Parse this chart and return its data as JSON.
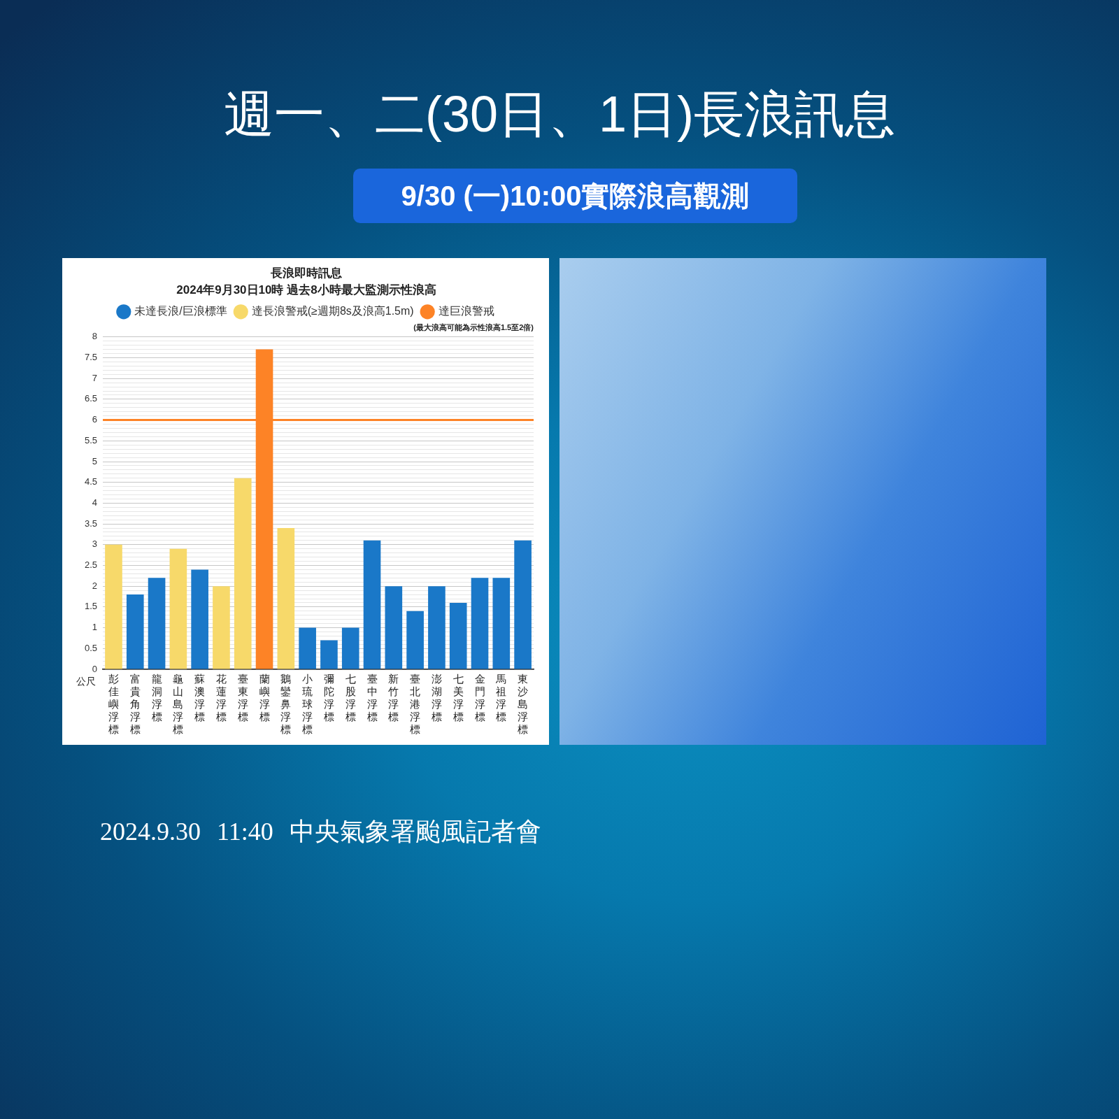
{
  "chart_data": {
    "type": "bar",
    "title": "長浪即時訊息",
    "subtitle": "2024年9月30日10時 過去8小時最大監測示性浪高",
    "ylabel": "公尺",
    "annotations": [
      "週一、二(30日、1日)長浪訊息",
      "9/30 (一)10:00實際浪高觀測",
      "(最大浪高可能為示性浪高1.5至2倍)",
      "2024.9.30 11:40 中央氣象署颱風記者會"
    ],
    "categories": [
      "彭佳嶼浮標",
      "富貴角浮標",
      "龍洞浮標",
      "龜山島浮標",
      "蘇澳浮標",
      "花蓮浮標",
      "臺東浮標",
      "蘭嶼浮標",
      "鵝鑾鼻浮標",
      "小琉球浮標",
      "彌陀浮標",
      "七股浮標",
      "臺中浮標",
      "新竹浮標",
      "臺北港浮標",
      "澎湖浮標",
      "七美浮標",
      "金門浮標",
      "馬祖浮標",
      "東沙島浮標"
    ],
    "series": [
      {
        "name": "未達長浪/巨浪標準",
        "color": "#1a78c8",
        "values": [
          null,
          1.8,
          2.2,
          null,
          2.4,
          null,
          null,
          null,
          null,
          1.0,
          0.7,
          1.0,
          3.1,
          2.0,
          1.4,
          2.0,
          1.6,
          2.2,
          2.2,
          3.1
        ]
      },
      {
        "name": "達長浪警戒(≥週期8s及浪高1.5m)",
        "color": "#f7d96a",
        "values": [
          3.0,
          null,
          null,
          2.9,
          null,
          2.0,
          4.6,
          null,
          3.4,
          null,
          null,
          null,
          null,
          null,
          null,
          null,
          null,
          null,
          null,
          null
        ]
      },
      {
        "name": "達巨浪警戒",
        "color": "#fd8326",
        "values": [
          null,
          null,
          null,
          null,
          null,
          null,
          null,
          7.7,
          null,
          null,
          null,
          null,
          null,
          null,
          null,
          null,
          null,
          null,
          null,
          null
        ]
      }
    ],
    "ylim": [
      0,
      8
    ],
    "yticks": [
      0,
      {
        "value": 0.1,
        "label": null
      },
      {
        "value": 0.2,
        "label": null
      },
      {
        "value": 0.3,
        "label": null
      },
      {
        "value": 0.4,
        "label": null
      },
      0.5,
      {
        "value": 0.6,
        "label": null
      },
      {
        "value": 0.7,
        "label": null
      },
      {
        "value": 0.8,
        "label": null
      },
      {
        "value": 0.9,
        "label": null
      },
      1,
      {
        "value": 1.1,
        "label": null
      },
      {
        "value": 1.2,
        "label": null
      },
      {
        "value": 1.3,
        "label": null
      },
      {
        "value": 1.4,
        "label": null
      },
      1.5,
      {
        "value": 1.6,
        "label": null
      },
      {
        "value": 1.7,
        "label": null
      },
      {
        "value": 1.8,
        "label": null
      },
      {
        "value": 1.9,
        "label": null
      },
      2,
      {
        "value": 2.1,
        "label": null
      },
      {
        "value": 2.2,
        "label": null
      },
      {
        "value": 2.3,
        "label": null
      },
      {
        "value": 2.4,
        "label": null
      },
      2.5,
      {
        "value": 2.6,
        "label": null
      },
      {
        "value": 2.7,
        "label": null
      },
      {
        "value": 2.8,
        "label": null
      },
      {
        "value": 2.9,
        "label": null
      },
      3,
      {
        "value": 3.1,
        "label": null
      },
      {
        "value": 3.2,
        "label": null
      },
      {
        "value": 3.3,
        "label": null
      },
      {
        "value": 3.4,
        "label": null
      },
      3.5,
      {
        "value": 3.6,
        "label": null
      },
      {
        "value": 3.7,
        "label": null
      },
      {
        "value": 3.8,
        "label": null
      },
      {
        "value": 3.9,
        "label": null
      },
      4,
      {
        "value": 4.1,
        "label": null
      },
      {
        "value": 4.2,
        "label": null
      },
      {
        "value": 4.3,
        "label": null
      },
      {
        "value": 4.4,
        "label": null
      },
      4.5,
      {
        "value": 4.6,
        "label": null
      },
      {
        "value": 4.7,
        "label": null
      },
      {
        "value": 4.8,
        "label": null
      },
      {
        "value": 4.9,
        "label": null
      },
      5,
      {
        "value": 5.1,
        "label": null
      },
      {
        "value": 5.2,
        "label": null
      },
      {
        "value": 5.3,
        "label": null
      },
      {
        "value": 5.4,
        "label": null
      },
      5.5,
      {
        "value": 5.6,
        "label": null
      },
      {
        "value": 5.7,
        "label": null
      },
      {
        "value": 5.8,
        "label": null
      },
      {
        "value": 5.9,
        "label": null
      },
      6,
      {
        "value": 6.1,
        "label": null
      },
      {
        "value": 6.2,
        "label": null
      },
      {
        "value": 6.3,
        "label": null
      },
      {
        "value": 6.4,
        "label": null
      },
      6.5,
      {
        "value": 6.6,
        "label": null
      },
      {
        "value": 6.7,
        "label": null
      },
      {
        "value": 6.8,
        "label": null
      },
      {
        "value": 6.9,
        "label": null
      },
      7,
      {
        "value": 7.1,
        "label": null
      },
      {
        "value": 7.2,
        "label": null
      },
      {
        "value": 7.3,
        "label": null
      },
      {
        "value": 7.4,
        "label": null
      },
      7.5,
      {
        "value": 7.6,
        "label": null
      },
      {
        "value": 7.7,
        "label": null
      },
      {
        "value": 7.8,
        "label": null
      },
      {
        "value": 7.9,
        "label": null
      },
      8
    ],
    "ref_lines": [
      {
        "axis": "y",
        "value": 6,
        "color": "#fd8326"
      }
    ],
    "grid": "y",
    "legend": "top"
  }
}
